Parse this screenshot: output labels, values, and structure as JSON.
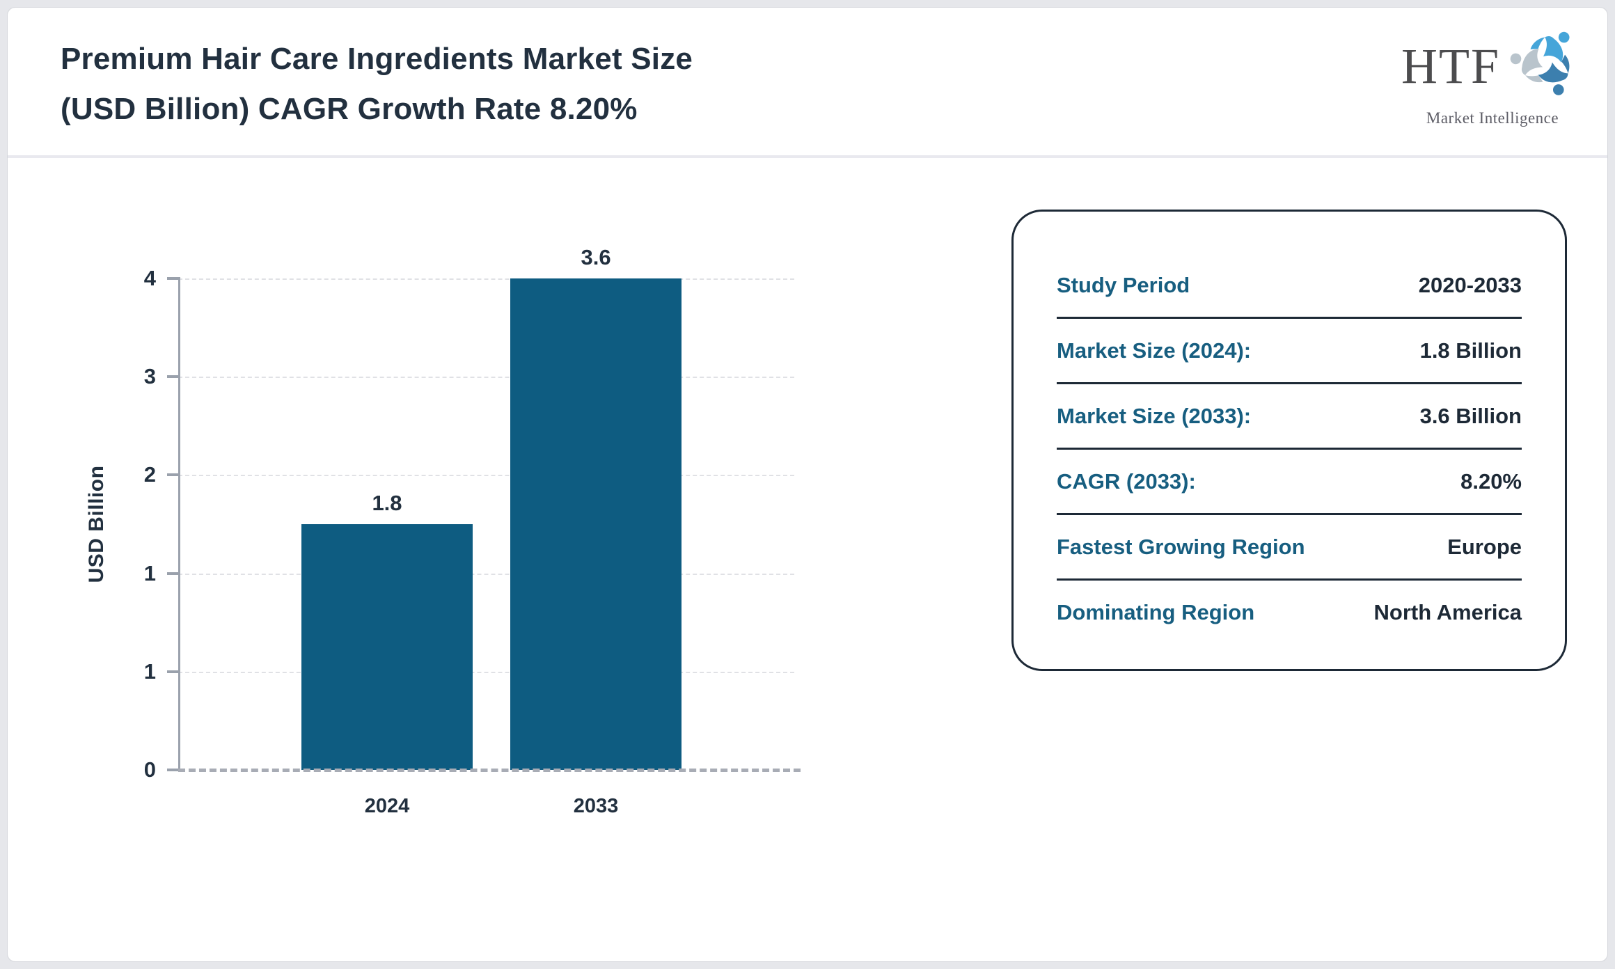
{
  "header": {
    "title_line1": "Premium Hair Care Ingredients Market Size",
    "title_line2": "(USD Billion) CAGR Growth Rate 8.20%"
  },
  "logo": {
    "text": "HTF",
    "subtext": "Market Intelligence",
    "swirl_colors": [
      "#45a5d9",
      "#3c7fae",
      "#b9c4cc"
    ]
  },
  "chart_data": {
    "type": "bar",
    "title": "Premium Hair Care Ingredients Market Size (USD Billion) CAGR Growth Rate 8.20%",
    "categories": [
      "2024",
      "2033"
    ],
    "values": [
      1.8,
      3.6
    ],
    "bar_labels": [
      "1.8",
      "3.6"
    ],
    "xlabel": "",
    "ylabel": "USD Billion",
    "ylim": [
      0,
      3.6
    ],
    "ytick_labels_top_to_bottom": [
      "4",
      "3",
      "2",
      "1",
      "1",
      "0"
    ],
    "grid": "horizontal-dashed",
    "legend": "none",
    "bar_color": "#0e5c81"
  },
  "info_panel": {
    "rows": [
      {
        "label": "Study Period",
        "value": "2020-2033"
      },
      {
        "label": "Market Size (2024):",
        "value": "1.8 Billion"
      },
      {
        "label": "Market Size (2033):",
        "value": "3.6 Billion"
      },
      {
        "label": "CAGR (2033):",
        "value": "8.20%"
      },
      {
        "label": "Fastest Growing Region",
        "value": "Europe"
      },
      {
        "label": "Dominating Region",
        "value": "North America"
      }
    ]
  },
  "colors": {
    "bar": "#0e5c81",
    "title_text": "#22303f",
    "panel_label": "#175e80",
    "panel_value": "#1d2936",
    "panel_border": "#1d2936",
    "axis": "#9aa1ac",
    "gridline": "#e0e1e5",
    "card_background": "#ffffff",
    "page_background": "#e6e7eb"
  }
}
